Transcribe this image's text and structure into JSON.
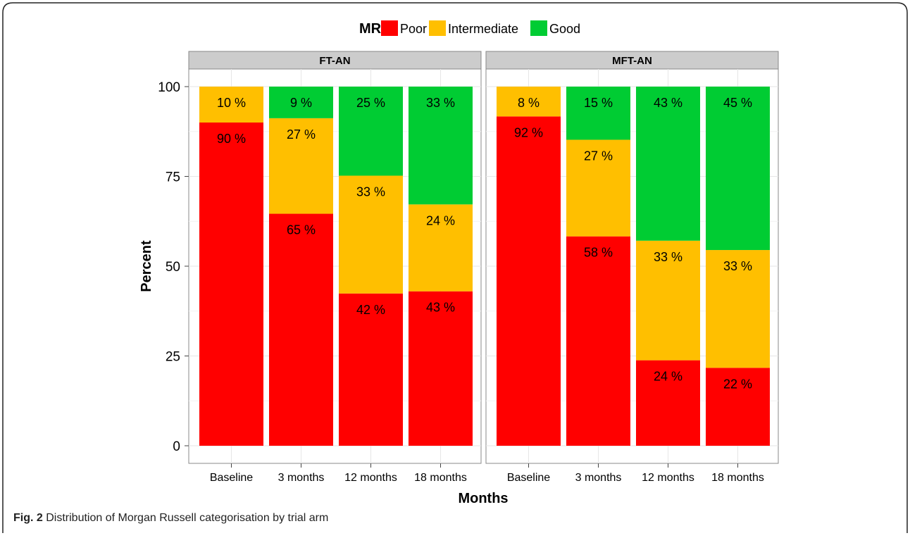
{
  "caption": {
    "label": "Fig. 2",
    "text": "Distribution of Morgan Russell categorisation by trial arm"
  },
  "chart_data": {
    "type": "bar",
    "stacked": true,
    "facets": [
      "FT-AN",
      "MFT-AN"
    ],
    "categories": [
      "Baseline",
      "3 months",
      "12 months",
      "18 months"
    ],
    "xlabel": "Months",
    "ylabel": "Percent",
    "ylim": [
      0,
      100
    ],
    "yticks": [
      0,
      25,
      50,
      75,
      100
    ],
    "grid": true,
    "legend": {
      "title": "MR",
      "position": "top",
      "entries": [
        {
          "name": "Poor",
          "color": "#ff0000"
        },
        {
          "name": "Intermediate",
          "color": "#ffbf00"
        },
        {
          "name": "Good",
          "color": "#00cc33"
        }
      ]
    },
    "panels": [
      {
        "facet": "FT-AN",
        "series": [
          {
            "name": "Poor",
            "values": [
              90,
              64.6,
              42.4,
              43
            ]
          },
          {
            "name": "Intermediate",
            "values": [
              10,
              26.6,
              32.8,
              24.2
            ]
          },
          {
            "name": "Good",
            "values": [
              0,
              8.8,
              24.8,
              32.8
            ]
          }
        ],
        "labels": {
          "Poor": [
            "90 %",
            "65 %",
            "42 %",
            "43 %"
          ],
          "Intermediate": [
            "10 %",
            "27 %",
            "33 %",
            "24 %"
          ],
          "Good": [
            "",
            "9 %",
            "25 %",
            "33 %"
          ]
        }
      },
      {
        "facet": "MFT-AN",
        "series": [
          {
            "name": "Poor",
            "values": [
              91.7,
              58.3,
              23.8,
              21.7
            ]
          },
          {
            "name": "Intermediate",
            "values": [
              8.3,
              26.9,
              33.3,
              32.8
            ]
          },
          {
            "name": "Good",
            "values": [
              0,
              14.8,
              42.9,
              45.5
            ]
          }
        ],
        "labels": {
          "Poor": [
            "92 %",
            "58 %",
            "24 %",
            "22 %"
          ],
          "Intermediate": [
            "8 %",
            "27 %",
            "33 %",
            "33 %"
          ],
          "Good": [
            "",
            "15 %",
            "43 %",
            "45 %"
          ]
        }
      }
    ]
  }
}
